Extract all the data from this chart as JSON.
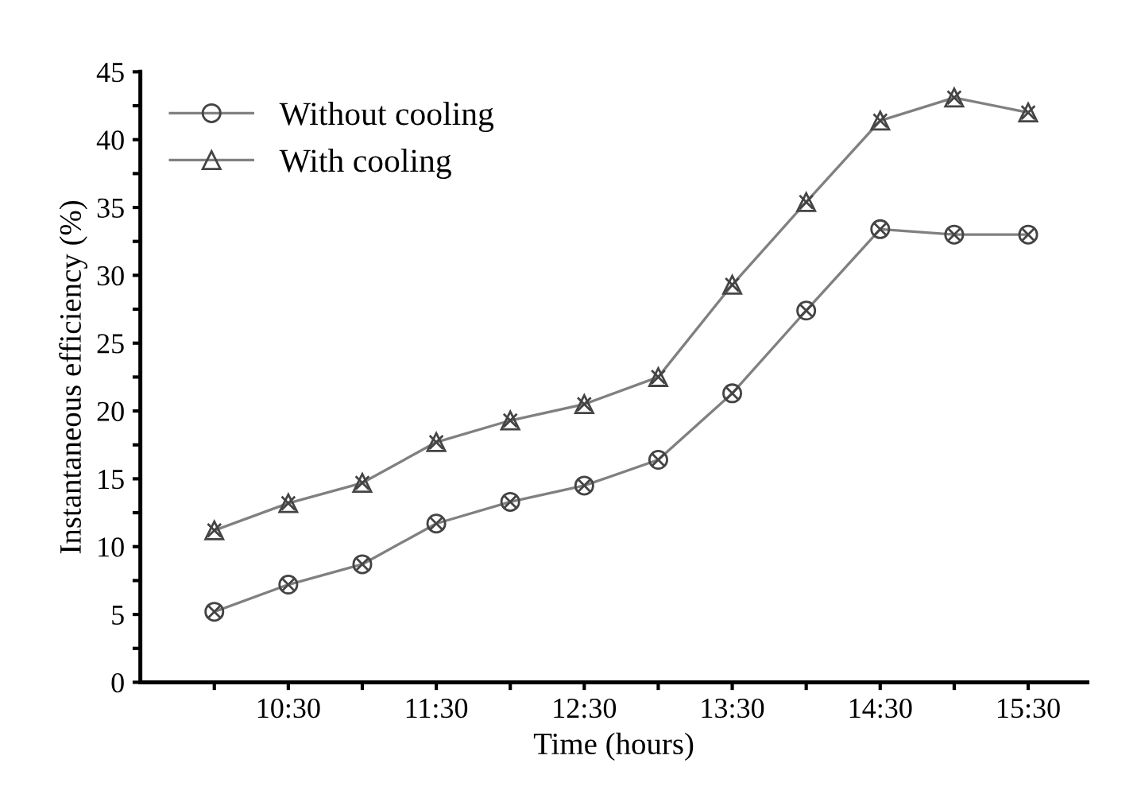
{
  "chart_data": {
    "type": "line",
    "xlabel": "Time (hours)",
    "ylabel": "Instantaneous efficiency (%)",
    "x": [
      10,
      10.5,
      11,
      11.5,
      12,
      12.5,
      13,
      13.5,
      14,
      14.5,
      15,
      15.5
    ],
    "series": [
      {
        "name": "Without cooling",
        "color": "#808080",
        "marker": "circle",
        "values": [
          5.2,
          7.2,
          8.7,
          11.7,
          13.3,
          14.5,
          16.4,
          21.3,
          27.4,
          33.4,
          33.0,
          33.0
        ]
      },
      {
        "name": "With cooling",
        "color": "#808080",
        "marker": "triangle",
        "values": [
          11.2,
          13.2,
          14.7,
          17.7,
          19.3,
          20.5,
          22.5,
          29.3,
          35.4,
          41.4,
          43.1,
          42.0
        ]
      }
    ],
    "xlim": [
      9.5,
      15.9
    ],
    "xticks": [
      {
        "value": 10,
        "label": null
      },
      {
        "value": 10.5,
        "label": "10:30"
      },
      {
        "value": 11,
        "label": null
      },
      {
        "value": 11.5,
        "label": "11:30"
      },
      {
        "value": 12,
        "label": null
      },
      {
        "value": 12.5,
        "label": "12:30"
      },
      {
        "value": 13,
        "label": null
      },
      {
        "value": 13.5,
        "label": "13:30"
      },
      {
        "value": 14,
        "label": null
      },
      {
        "value": 14.5,
        "label": "14:30"
      },
      {
        "value": 15,
        "label": null
      },
      {
        "value": 15.5,
        "label": "15:30"
      }
    ],
    "ylim": [
      0,
      45
    ],
    "yticks": [
      0,
      {
        "value": 2.5,
        "label": null
      },
      5,
      {
        "value": 7.5,
        "label": null
      },
      10,
      {
        "value": 12.5,
        "label": null
      },
      15,
      {
        "value": 17.5,
        "label": null
      },
      20,
      {
        "value": 22.5,
        "label": null
      },
      25,
      {
        "value": 27.5,
        "label": null
      },
      30,
      {
        "value": 32.5,
        "label": null
      },
      35,
      {
        "value": 37.5,
        "label": null
      },
      40,
      {
        "value": 42.5,
        "label": null
      },
      45
    ],
    "grid": false,
    "legend": "top left",
    "line_style": "solid"
  }
}
